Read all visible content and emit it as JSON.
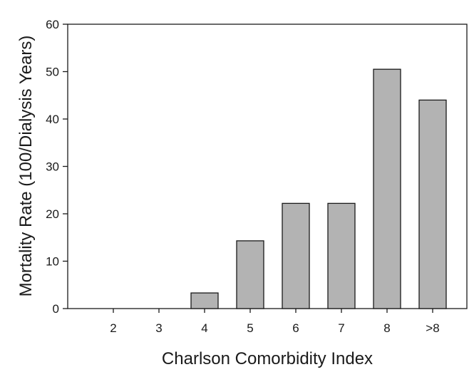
{
  "chart_data": {
    "type": "bar",
    "xlabel": "Charlson Comorbidity Index",
    "ylabel": "Mortality Rate (100/Dialysis Years)",
    "categories": [
      "2",
      "3",
      "4",
      "5",
      "6",
      "7",
      "8",
      ">8"
    ],
    "values": [
      0,
      0,
      3.3,
      14.3,
      22.2,
      22.2,
      50.5,
      44.0
    ],
    "ylim": [
      0,
      60
    ],
    "yticks": [
      0,
      10,
      20,
      30,
      40,
      50,
      60
    ],
    "grid": false,
    "legend": "none",
    "colors": {
      "bar_fill": "#b3b3b3",
      "bar_stroke": "#1a1a1a",
      "axis": "#1a1a1a"
    }
  }
}
